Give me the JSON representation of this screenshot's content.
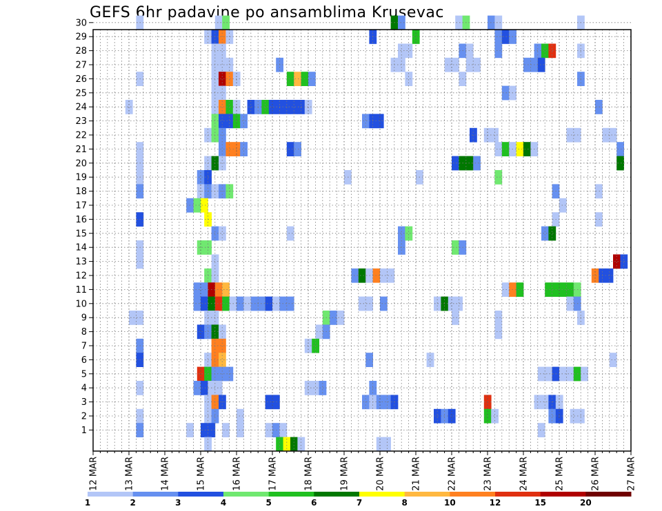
{
  "chart_data": {
    "type": "heatmap",
    "title": "GEFS 6hr padavine po ansamblima Krusevac",
    "xlabel": "",
    "ylabel": "",
    "x_start_day": 12,
    "x_end_day": 27,
    "x_tick_labels": [
      "12 MAR",
      "13 MAR",
      "14 MAR",
      "15 MAR",
      "16 MAR",
      "17 MAR",
      "18 MAR",
      "19 MAR",
      "20 MAR",
      "21 MAR",
      "22 MAR",
      "23 MAR",
      "24 MAR",
      "25 MAR",
      "26 MAR",
      "27 MAR"
    ],
    "y_tick_labels": [
      "1",
      "2",
      "3",
      "4",
      "5",
      "6",
      "7",
      "8",
      "9",
      "10",
      "11",
      "12",
      "13",
      "14",
      "15",
      "16",
      "17",
      "18",
      "19",
      "20",
      "21",
      "22",
      "23",
      "24",
      "25",
      "26",
      "27",
      "28",
      "29",
      "30"
    ],
    "ylim": [
      0,
      30
    ],
    "grid": true,
    "colorbar": {
      "bins": [
        1,
        2,
        3,
        4,
        5,
        6,
        7,
        8,
        10,
        12,
        15,
        20
      ],
      "labels": [
        "1",
        "2",
        "3",
        "4",
        "5",
        "6",
        "7",
        "8",
        "10",
        "12",
        "15",
        "20"
      ],
      "colors": [
        "#b3c6f7",
        "#6690f0",
        "#2250e0",
        "#70e870",
        "#20c020",
        "#007800",
        "#ffff00",
        "#ffb840",
        "#ff8020",
        "#e03010",
        "#b00000",
        "#700000"
      ]
    },
    "cells": [
      [
        30,
        13.3,
        1
      ],
      [
        30,
        15.5,
        1
      ],
      [
        30,
        15.7,
        4
      ],
      [
        30,
        20.4,
        6
      ],
      [
        30,
        20.6,
        2
      ],
      [
        30,
        22.2,
        1
      ],
      [
        30,
        22.4,
        4
      ],
      [
        30,
        23.1,
        2
      ],
      [
        30,
        23.3,
        1
      ],
      [
        30,
        25.6,
        1
      ],
      [
        29,
        15.2,
        1
      ],
      [
        29,
        15.4,
        3
      ],
      [
        29,
        15.6,
        10
      ],
      [
        29,
        15.8,
        1
      ],
      [
        29,
        19.8,
        3
      ],
      [
        29,
        21.0,
        5
      ],
      [
        29,
        23.3,
        2
      ],
      [
        29,
        23.5,
        3
      ],
      [
        29,
        23.7,
        2
      ],
      [
        28,
        15.4,
        1
      ],
      [
        28,
        15.6,
        1
      ],
      [
        28,
        20.6,
        1
      ],
      [
        28,
        20.8,
        1
      ],
      [
        28,
        22.3,
        2
      ],
      [
        28,
        22.5,
        1
      ],
      [
        28,
        23.3,
        2
      ],
      [
        28,
        24.4,
        2
      ],
      [
        28,
        24.6,
        5
      ],
      [
        28,
        24.8,
        13
      ],
      [
        28,
        25.6,
        1
      ],
      [
        27,
        15.4,
        1
      ],
      [
        27,
        15.6,
        1
      ],
      [
        27,
        15.8,
        1
      ],
      [
        27,
        17.2,
        2
      ],
      [
        27,
        20.4,
        1
      ],
      [
        27,
        20.6,
        1
      ],
      [
        27,
        21.9,
        1
      ],
      [
        27,
        22.1,
        1
      ],
      [
        27,
        22.5,
        1
      ],
      [
        27,
        22.7,
        1
      ],
      [
        27,
        24.1,
        2
      ],
      [
        27,
        24.3,
        2
      ],
      [
        27,
        24.5,
        3
      ],
      [
        26,
        13.3,
        1
      ],
      [
        26,
        15.4,
        1
      ],
      [
        26,
        15.6,
        16
      ],
      [
        26,
        15.8,
        10
      ],
      [
        26,
        16.0,
        1
      ],
      [
        26,
        17.5,
        5
      ],
      [
        26,
        17.7,
        8
      ],
      [
        26,
        17.9,
        5
      ],
      [
        26,
        18.1,
        2
      ],
      [
        26,
        20.8,
        1
      ],
      [
        26,
        22.3,
        1
      ],
      [
        26,
        25.6,
        2
      ],
      [
        25,
        15.4,
        1
      ],
      [
        25,
        15.6,
        1
      ],
      [
        25,
        23.5,
        2
      ],
      [
        25,
        23.7,
        1
      ],
      [
        24,
        13.0,
        1
      ],
      [
        24,
        15.4,
        1
      ],
      [
        24,
        15.6,
        11
      ],
      [
        24,
        15.8,
        5
      ],
      [
        24,
        16.0,
        1
      ],
      [
        24,
        16.4,
        3
      ],
      [
        24,
        16.6,
        2
      ],
      [
        24,
        16.8,
        5
      ],
      [
        24,
        17.0,
        3
      ],
      [
        24,
        17.2,
        3
      ],
      [
        24,
        17.4,
        3
      ],
      [
        24,
        17.6,
        3
      ],
      [
        24,
        17.8,
        3
      ],
      [
        24,
        18.0,
        1
      ],
      [
        24,
        26.1,
        2
      ],
      [
        23,
        15.4,
        4
      ],
      [
        23,
        15.6,
        3
      ],
      [
        23,
        15.8,
        3
      ],
      [
        23,
        16.0,
        5
      ],
      [
        23,
        16.2,
        2
      ],
      [
        23,
        19.6,
        2
      ],
      [
        23,
        19.8,
        3
      ],
      [
        23,
        20.0,
        3
      ],
      [
        22,
        15.2,
        1
      ],
      [
        22,
        15.4,
        4
      ],
      [
        22,
        15.6,
        2
      ],
      [
        22,
        22.6,
        3
      ],
      [
        22,
        23.0,
        1
      ],
      [
        22,
        23.2,
        1
      ],
      [
        22,
        25.3,
        1
      ],
      [
        22,
        25.5,
        1
      ],
      [
        22,
        26.3,
        1
      ],
      [
        22,
        26.5,
        1
      ],
      [
        21,
        13.3,
        1
      ],
      [
        21,
        15.6,
        2
      ],
      [
        21,
        15.8,
        10
      ],
      [
        21,
        16.0,
        11
      ],
      [
        21,
        16.2,
        2
      ],
      [
        21,
        17.5,
        3
      ],
      [
        21,
        17.7,
        2
      ],
      [
        21,
        23.3,
        1
      ],
      [
        21,
        23.5,
        5
      ],
      [
        21,
        23.7,
        1
      ],
      [
        21,
        23.9,
        7
      ],
      [
        21,
        24.1,
        6
      ],
      [
        21,
        24.3,
        1
      ],
      [
        21,
        26.7,
        2
      ],
      [
        20,
        13.3,
        1
      ],
      [
        20,
        15.2,
        1
      ],
      [
        20,
        15.4,
        6
      ],
      [
        20,
        15.6,
        1
      ],
      [
        20,
        22.1,
        3
      ],
      [
        20,
        22.3,
        6
      ],
      [
        20,
        22.5,
        6
      ],
      [
        20,
        22.7,
        2
      ],
      [
        20,
        26.7,
        6
      ],
      [
        19,
        13.3,
        1
      ],
      [
        19,
        15.0,
        2
      ],
      [
        19,
        15.2,
        3
      ],
      [
        19,
        19.1,
        1
      ],
      [
        19,
        21.1,
        1
      ],
      [
        19,
        23.3,
        4
      ],
      [
        18,
        13.3,
        2
      ],
      [
        18,
        15.0,
        1
      ],
      [
        18,
        15.2,
        2
      ],
      [
        18,
        15.4,
        1
      ],
      [
        18,
        15.6,
        2
      ],
      [
        18,
        15.8,
        4
      ],
      [
        18,
        24.9,
        2
      ],
      [
        18,
        26.1,
        1
      ],
      [
        17,
        14.7,
        2
      ],
      [
        17,
        14.9,
        4
      ],
      [
        17,
        15.1,
        7
      ],
      [
        17,
        25.1,
        1
      ],
      [
        16,
        13.3,
        3
      ],
      [
        16,
        15.2,
        7
      ],
      [
        16,
        24.9,
        1
      ],
      [
        16,
        26.1,
        1
      ],
      [
        15,
        15.4,
        2
      ],
      [
        15,
        15.6,
        1
      ],
      [
        15,
        17.5,
        1
      ],
      [
        15,
        20.6,
        2
      ],
      [
        15,
        20.8,
        4
      ],
      [
        15,
        24.6,
        2
      ],
      [
        15,
        24.8,
        6
      ],
      [
        14,
        13.3,
        1
      ],
      [
        14,
        15.0,
        4
      ],
      [
        14,
        15.2,
        4
      ],
      [
        14,
        20.6,
        2
      ],
      [
        14,
        22.1,
        4
      ],
      [
        14,
        22.3,
        2
      ],
      [
        13,
        13.3,
        1
      ],
      [
        13,
        15.4,
        1
      ],
      [
        13,
        26.6,
        16
      ],
      [
        13,
        26.8,
        3
      ],
      [
        12,
        15.2,
        4
      ],
      [
        12,
        15.4,
        1
      ],
      [
        12,
        19.3,
        2
      ],
      [
        12,
        19.5,
        6
      ],
      [
        12,
        19.7,
        1
      ],
      [
        12,
        19.9,
        11
      ],
      [
        12,
        20.1,
        1
      ],
      [
        12,
        20.3,
        1
      ],
      [
        12,
        26.0,
        11
      ],
      [
        12,
        26.2,
        3
      ],
      [
        12,
        26.4,
        3
      ],
      [
        11,
        14.9,
        2
      ],
      [
        11,
        15.1,
        2
      ],
      [
        11,
        15.3,
        16
      ],
      [
        11,
        15.5,
        11
      ],
      [
        11,
        15.7,
        8
      ],
      [
        11,
        23.5,
        1
      ],
      [
        11,
        23.7,
        10
      ],
      [
        11,
        23.9,
        5
      ],
      [
        11,
        24.7,
        5
      ],
      [
        11,
        24.9,
        5
      ],
      [
        11,
        25.1,
        5
      ],
      [
        11,
        25.3,
        5
      ],
      [
        11,
        25.5,
        4
      ],
      [
        10,
        14.9,
        2
      ],
      [
        10,
        15.1,
        3
      ],
      [
        10,
        15.3,
        6
      ],
      [
        10,
        15.5,
        12
      ],
      [
        10,
        15.7,
        5
      ],
      [
        10,
        15.9,
        1
      ],
      [
        10,
        16.1,
        2
      ],
      [
        10,
        16.3,
        1
      ],
      [
        10,
        16.5,
        2
      ],
      [
        10,
        16.7,
        2
      ],
      [
        10,
        16.9,
        3
      ],
      [
        10,
        17.1,
        1
      ],
      [
        10,
        17.3,
        2
      ],
      [
        10,
        17.5,
        2
      ],
      [
        10,
        19.5,
        1
      ],
      [
        10,
        19.7,
        1
      ],
      [
        10,
        20.1,
        2
      ],
      [
        10,
        21.6,
        1
      ],
      [
        10,
        21.8,
        6
      ],
      [
        10,
        22.0,
        1
      ],
      [
        10,
        22.2,
        1
      ],
      [
        10,
        25.3,
        1
      ],
      [
        10,
        25.5,
        2
      ],
      [
        9,
        13.1,
        1
      ],
      [
        9,
        13.3,
        1
      ],
      [
        9,
        15.2,
        1
      ],
      [
        9,
        15.4,
        1
      ],
      [
        9,
        18.5,
        4
      ],
      [
        9,
        18.7,
        2
      ],
      [
        9,
        18.9,
        1
      ],
      [
        9,
        22.1,
        1
      ],
      [
        9,
        23.3,
        1
      ],
      [
        9,
        25.6,
        1
      ],
      [
        8,
        15.0,
        3
      ],
      [
        8,
        15.2,
        2
      ],
      [
        8,
        15.4,
        6
      ],
      [
        8,
        15.6,
        1
      ],
      [
        8,
        18.3,
        1
      ],
      [
        8,
        18.5,
        2
      ],
      [
        8,
        23.3,
        1
      ],
      [
        7,
        13.3,
        2
      ],
      [
        7,
        15.4,
        10
      ],
      [
        7,
        15.6,
        10
      ],
      [
        7,
        18.0,
        1
      ],
      [
        7,
        18.2,
        5
      ],
      [
        6,
        13.3,
        3
      ],
      [
        6,
        15.2,
        1
      ],
      [
        6,
        15.4,
        11
      ],
      [
        6,
        15.6,
        8
      ],
      [
        6,
        19.7,
        2
      ],
      [
        6,
        21.4,
        1
      ],
      [
        6,
        26.5,
        1
      ],
      [
        5,
        15.0,
        13
      ],
      [
        5,
        15.2,
        5
      ],
      [
        5,
        15.4,
        2
      ],
      [
        5,
        15.6,
        2
      ],
      [
        5,
        15.8,
        2
      ],
      [
        5,
        24.5,
        1
      ],
      [
        5,
        24.7,
        1
      ],
      [
        5,
        24.9,
        3
      ],
      [
        5,
        25.1,
        1
      ],
      [
        5,
        25.3,
        1
      ],
      [
        5,
        25.5,
        5
      ],
      [
        5,
        25.7,
        1
      ],
      [
        4,
        13.3,
        1
      ],
      [
        4,
        14.9,
        2
      ],
      [
        4,
        15.1,
        3
      ],
      [
        4,
        15.3,
        1
      ],
      [
        4,
        15.5,
        1
      ],
      [
        4,
        18.0,
        1
      ],
      [
        4,
        18.2,
        1
      ],
      [
        4,
        18.4,
        2
      ],
      [
        4,
        19.8,
        2
      ],
      [
        3,
        15.2,
        1
      ],
      [
        3,
        15.4,
        10
      ],
      [
        3,
        15.6,
        3
      ],
      [
        3,
        16.9,
        3
      ],
      [
        3,
        17.1,
        3
      ],
      [
        3,
        19.6,
        2
      ],
      [
        3,
        19.8,
        1
      ],
      [
        3,
        20.0,
        2
      ],
      [
        3,
        20.2,
        2
      ],
      [
        3,
        20.4,
        3
      ],
      [
        3,
        23.0,
        13
      ],
      [
        3,
        24.4,
        1
      ],
      [
        3,
        24.6,
        1
      ],
      [
        3,
        24.8,
        3
      ],
      [
        3,
        25.0,
        1
      ],
      [
        2,
        13.3,
        1
      ],
      [
        2,
        15.2,
        1
      ],
      [
        2,
        15.4,
        2
      ],
      [
        2,
        16.1,
        1
      ],
      [
        2,
        21.6,
        3
      ],
      [
        2,
        21.8,
        2
      ],
      [
        2,
        22.0,
        3
      ],
      [
        2,
        23.0,
        5
      ],
      [
        2,
        23.2,
        1
      ],
      [
        2,
        24.8,
        2
      ],
      [
        2,
        25.0,
        3
      ],
      [
        2,
        25.4,
        1
      ],
      [
        2,
        25.6,
        1
      ],
      [
        1,
        13.3,
        2
      ],
      [
        1,
        14.7,
        1
      ],
      [
        1,
        15.1,
        3
      ],
      [
        1,
        15.3,
        3
      ],
      [
        1,
        15.7,
        1
      ],
      [
        1,
        16.1,
        1
      ],
      [
        1,
        16.9,
        1
      ],
      [
        1,
        17.1,
        2
      ],
      [
        1,
        17.3,
        1
      ],
      [
        1,
        24.5,
        1
      ],
      [
        0,
        15.2,
        1
      ],
      [
        0,
        17.2,
        5
      ],
      [
        0,
        17.4,
        7
      ],
      [
        0,
        17.6,
        6
      ],
      [
        0,
        17.8,
        1
      ],
      [
        0,
        20.0,
        1
      ],
      [
        0,
        20.2,
        1
      ]
    ]
  }
}
